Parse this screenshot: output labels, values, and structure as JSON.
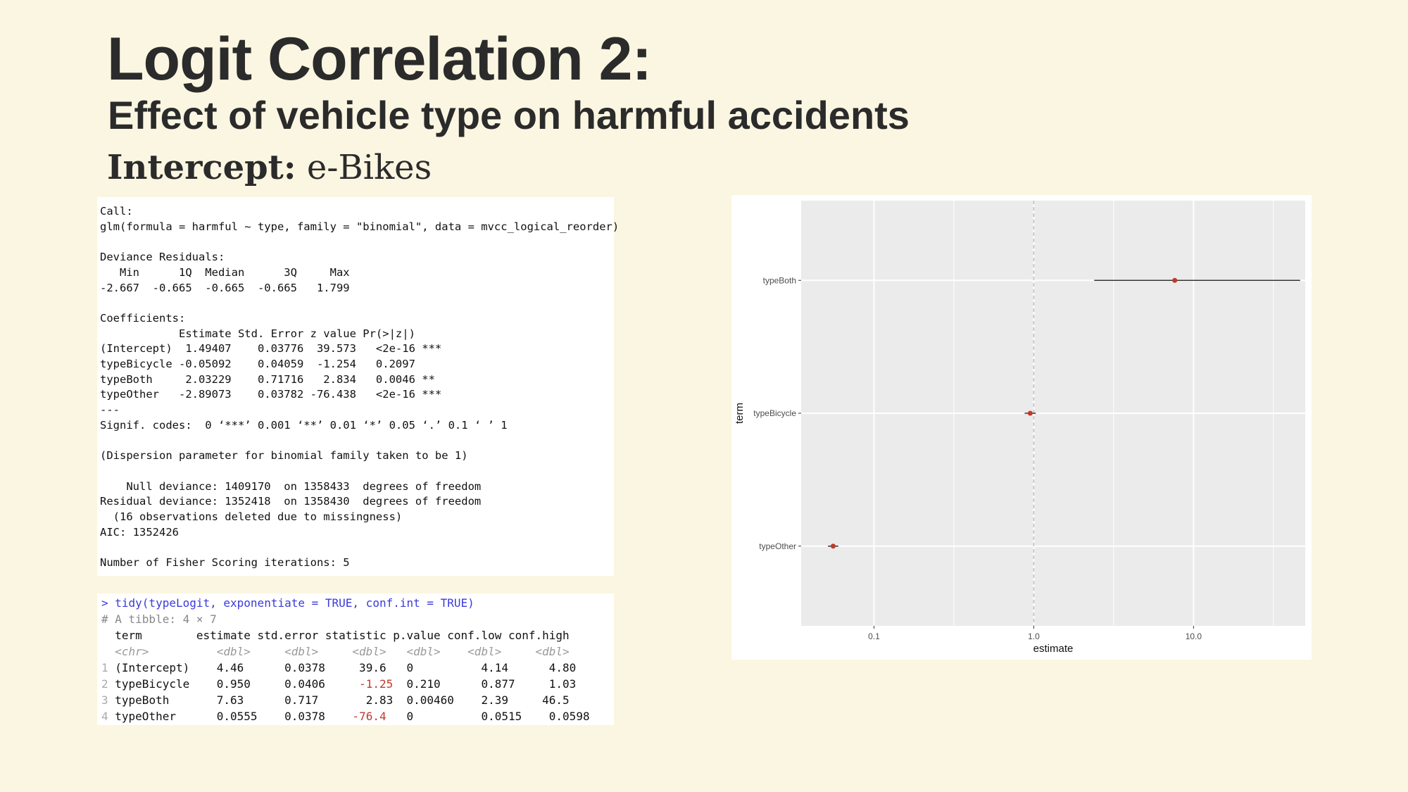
{
  "slide": {
    "title": "Logit Correlation 2:",
    "subtitle": "Effect of vehicle type on harmful accidents",
    "intercept_label": "Intercept:",
    "intercept_value": "e-Bikes"
  },
  "glm_summary": {
    "text": "Call:\nglm(formula = harmful ~ type, family = \"binomial\", data = mvcc_logical_reorder)\n\nDeviance Residuals:\n   Min      1Q  Median      3Q     Max\n-2.667  -0.665  -0.665  -0.665   1.799\n\nCoefficients:\n            Estimate Std. Error z value Pr(>|z|)\n(Intercept)  1.49407    0.03776  39.573   <2e-16 ***\ntypeBicycle -0.05092    0.04059  -1.254   0.2097\ntypeBoth     2.03229    0.71716   2.834   0.0046 **\ntypeOther   -2.89073    0.03782 -76.438   <2e-16 ***\n---\nSignif. codes:  0 ‘***’ 0.001 ‘**’ 0.01 ‘*’ 0.05 ‘.’ 0.1 ‘ ’ 1\n\n(Dispersion parameter for binomial family taken to be 1)\n\n    Null deviance: 1409170  on 1358433  degrees of freedom\nResidual deviance: 1352418  on 1358430  degrees of freedom\n  (16 observations deleted due to missingness)\nAIC: 1352426\n\nNumber of Fisher Scoring iterations: 5"
  },
  "tidy_output": {
    "command": "> tidy(typeLogit, exponentiate = TRUE, conf.int = TRUE)",
    "meta": "# A tibble: 4 × 7",
    "header": "  term        estimate std.error statistic p.value conf.low conf.high",
    "types": "  <chr>          <dbl>     <dbl>     <dbl>   <dbl>    <dbl>     <dbl>",
    "rows": [
      {
        "num": "1",
        "term": " (Intercept)",
        "estimate": "    4.46  ",
        "std_error": "    0.0378",
        "statistic": "     39.6  ",
        "statistic_negative": false,
        "p_value": " 0      ",
        "conf_low": "    4.14  ",
        "conf_high": "    4.80  "
      },
      {
        "num": "2",
        "term": " typeBicycle",
        "estimate": "    0.950 ",
        "std_error": "    0.0406",
        "statistic": "     -1.25 ",
        "statistic_negative": true,
        "p_value": " 0.210  ",
        "conf_low": "    0.877 ",
        "conf_high": "    1.03  "
      },
      {
        "num": "3",
        "term": " typeBoth   ",
        "estimate": "    7.63  ",
        "std_error": "    0.717 ",
        "statistic": "      2.83 ",
        "statistic_negative": false,
        "p_value": " 0.00460",
        "conf_low": "    2.39  ",
        "conf_high": "   46.5   "
      },
      {
        "num": "4",
        "term": " typeOther  ",
        "estimate": "    0.0555",
        "std_error": "    0.0378",
        "statistic": "    -76.4  ",
        "statistic_negative": true,
        "p_value": " 0      ",
        "conf_low": "    0.0515",
        "conf_high": "    0.0598"
      }
    ]
  },
  "chart_data": {
    "type": "scatter",
    "xlabel": "estimate",
    "ylabel": "term",
    "x_scale": "log10",
    "xlim": [
      0.035,
      50
    ],
    "x_ticks": [
      0.1,
      1.0,
      10.0
    ],
    "x_tick_labels": [
      "0.1",
      "1.0",
      "10.0"
    ],
    "categories": [
      "typeBoth",
      "typeBicycle",
      "typeOther"
    ],
    "points": [
      {
        "term": "typeBoth",
        "estimate": 7.63,
        "conf_low": 2.39,
        "conf_high": 46.5
      },
      {
        "term": "typeBicycle",
        "estimate": 0.95,
        "conf_low": 0.877,
        "conf_high": 1.03
      },
      {
        "term": "typeOther",
        "estimate": 0.0555,
        "conf_low": 0.0515,
        "conf_high": 0.0598
      }
    ],
    "reference_line_x": 1,
    "grid": true,
    "legend": "none",
    "colors": {
      "point": "#c0392b",
      "errorbar": "#333333",
      "panel": "#ebebeb",
      "grid": "#ffffff",
      "reference": "#bdbdbd"
    }
  }
}
